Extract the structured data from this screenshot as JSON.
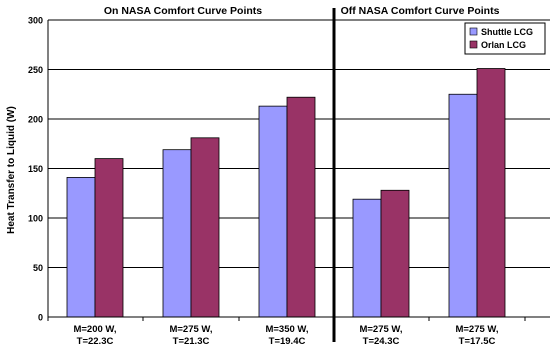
{
  "chart_data": {
    "type": "bar",
    "ylabel": "Heat Transfer to Liquid (W)",
    "ylim": [
      0,
      300
    ],
    "yticks": [
      0,
      50,
      100,
      150,
      200,
      250,
      300
    ],
    "grid": true,
    "legend_position": "top-right",
    "groups": [
      {
        "title": "On NASA Comfort Curve Points",
        "categories": [
          [
            "M=200 W,",
            "T=22.3C"
          ],
          [
            "M=275 W,",
            "T=21.3C"
          ],
          [
            "M=350 W,",
            "T=19.4C"
          ]
        ]
      },
      {
        "title": "Off NASA Comfort Curve Points",
        "categories": [
          [
            "M=275 W,",
            "T=24.3C"
          ],
          [
            "M=275 W,",
            "T=17.5C"
          ]
        ]
      }
    ],
    "series": [
      {
        "name": "Shuttle LCG",
        "color": "#9999ff",
        "values": [
          141,
          169,
          213,
          119,
          225
        ]
      },
      {
        "name": "Orlan LCG",
        "color": "#993366",
        "values": [
          160,
          181,
          222,
          128,
          251
        ]
      }
    ]
  }
}
